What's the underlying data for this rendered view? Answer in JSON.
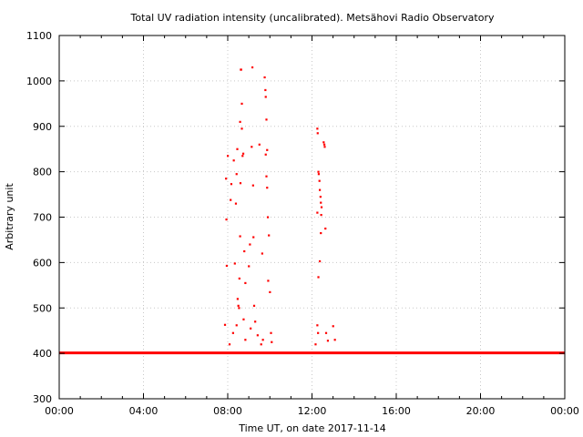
{
  "chart_data": {
    "type": "scatter",
    "title": "Total UV radiation intensity (uncalibrated). Metsähovi Radio Observatory",
    "xlabel": "Time UT, on date 2017-11-14",
    "ylabel": "Arbitrary unit",
    "xlim": [
      "00:00",
      "24:00"
    ],
    "ylim": [
      300,
      1100
    ],
    "x_ticks": [
      "00:00",
      "04:00",
      "08:00",
      "12:00",
      "16:00",
      "20:00",
      "00:00"
    ],
    "y_ticks": [
      "300",
      "400",
      "500",
      "600",
      "700",
      "800",
      "900",
      "1000",
      "1100"
    ],
    "grid": true,
    "marker_color": "#ff0000",
    "series": [
      {
        "baseline": 401,
        "points": [
          [
            "07:55",
            785
          ],
          [
            "07:56",
            695
          ],
          [
            "07:57",
            593
          ],
          [
            "08:00",
            835
          ],
          [
            "07:52",
            463
          ],
          [
            "08:08",
            738
          ],
          [
            "08:10",
            773
          ],
          [
            "08:17",
            825
          ],
          [
            "08:20",
            598
          ],
          [
            "08:23",
            730
          ],
          [
            "08:25",
            795
          ],
          [
            "08:27",
            850
          ],
          [
            "08:33",
            565
          ],
          [
            "08:35",
            910
          ],
          [
            "08:37",
            1025
          ],
          [
            "08:38",
            1025
          ],
          [
            "08:40",
            950
          ],
          [
            "08:40",
            895
          ],
          [
            "08:42",
            835
          ],
          [
            "08:36",
            775
          ],
          [
            "08:35",
            658
          ],
          [
            "08:44",
            840
          ],
          [
            "08:47",
            625
          ],
          [
            "08:50",
            555
          ],
          [
            "08:28",
            520
          ],
          [
            "08:30",
            505
          ],
          [
            "08:32",
            500
          ],
          [
            "08:45",
            475
          ],
          [
            "08:50",
            430
          ],
          [
            "09:00",
            592
          ],
          [
            "09:03",
            640
          ],
          [
            "09:08",
            855
          ],
          [
            "09:10",
            1030
          ],
          [
            "09:12",
            770
          ],
          [
            "09:13",
            656
          ],
          [
            "09:18",
            470
          ],
          [
            "09:15",
            505
          ],
          [
            "09:30",
            860
          ],
          [
            "09:38",
            620
          ],
          [
            "09:45",
            1008
          ],
          [
            "09:47",
            980
          ],
          [
            "09:48",
            965
          ],
          [
            "09:50",
            915
          ],
          [
            "09:52",
            848
          ],
          [
            "09:48",
            838
          ],
          [
            "09:50",
            790
          ],
          [
            "09:52",
            765
          ],
          [
            "09:54",
            700
          ],
          [
            "09:57",
            660
          ],
          [
            "09:55",
            560
          ],
          [
            "10:00",
            535
          ],
          [
            "10:03",
            445
          ],
          [
            "10:05",
            425
          ],
          [
            "08:05",
            420
          ],
          [
            "08:15",
            445
          ],
          [
            "08:25",
            462
          ],
          [
            "09:05",
            455
          ],
          [
            "09:25",
            440
          ],
          [
            "09:35",
            420
          ],
          [
            "09:40",
            430
          ],
          [
            "12:15",
            895
          ],
          [
            "12:16",
            885
          ],
          [
            "12:18",
            800
          ],
          [
            "12:19",
            795
          ],
          [
            "12:21",
            780
          ],
          [
            "12:22",
            760
          ],
          [
            "12:24",
            745
          ],
          [
            "12:25",
            732
          ],
          [
            "12:27",
            722
          ],
          [
            "12:26",
            705
          ],
          [
            "12:15",
            710
          ],
          [
            "12:33",
            865
          ],
          [
            "12:35",
            860
          ],
          [
            "12:36",
            855
          ],
          [
            "12:38",
            675
          ],
          [
            "12:25",
            665
          ],
          [
            "12:22",
            603
          ],
          [
            "12:18",
            568
          ],
          [
            "12:15",
            462
          ],
          [
            "12:17",
            445
          ],
          [
            "12:40",
            445
          ],
          [
            "12:45",
            428
          ],
          [
            "13:00",
            460
          ],
          [
            "13:05",
            430
          ],
          [
            "12:10",
            420
          ]
        ]
      }
    ]
  }
}
